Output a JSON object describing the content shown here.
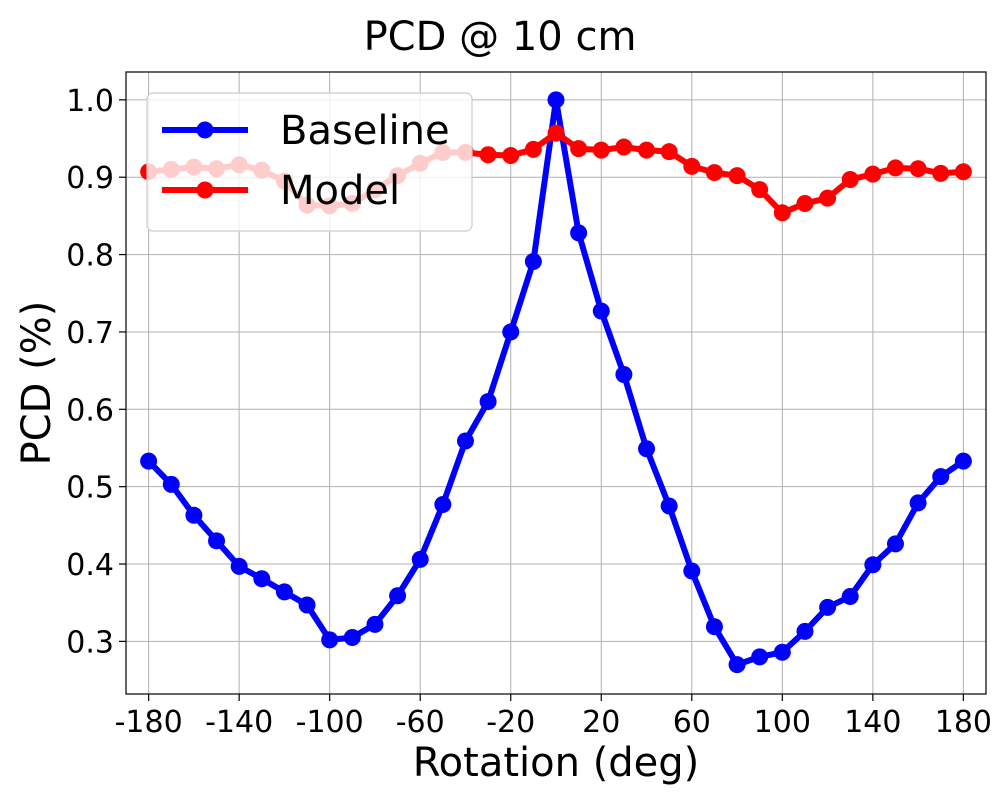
{
  "chart_data": {
    "type": "line",
    "title": "PCD @ 10 cm",
    "xlabel": "Rotation (deg)",
    "ylabel": "PCD (%)",
    "xlim": [
      -190,
      190
    ],
    "ylim": [
      0.232,
      1.036
    ],
    "xticks": [
      -180,
      -140,
      -100,
      -60,
      -20,
      20,
      60,
      100,
      140,
      180
    ],
    "yticks": [
      0.3,
      0.4,
      0.5,
      0.6,
      0.7,
      0.8,
      0.9,
      1.0
    ],
    "ytick_labels": [
      "0.3",
      "0.4",
      "0.5",
      "0.6",
      "0.7",
      "0.8",
      "0.9",
      "1.0"
    ],
    "grid": true,
    "legend": "top-left",
    "x": [
      -180,
      -170,
      -160,
      -150,
      -140,
      -130,
      -120,
      -110,
      -100,
      -90,
      -80,
      -70,
      -60,
      -50,
      -40,
      -30,
      -20,
      -10,
      0,
      10,
      20,
      30,
      40,
      50,
      60,
      70,
      80,
      90,
      100,
      110,
      120,
      130,
      140,
      150,
      160,
      170,
      180
    ],
    "series": [
      {
        "name": "Baseline",
        "color": "#0000ff",
        "values": [
          0.533,
          0.503,
          0.463,
          0.43,
          0.397,
          0.381,
          0.364,
          0.347,
          0.302,
          0.305,
          0.322,
          0.359,
          0.406,
          0.477,
          0.559,
          0.61,
          0.7,
          0.791,
          1.0,
          0.828,
          0.727,
          0.645,
          0.549,
          0.475,
          0.391,
          0.319,
          0.27,
          0.28,
          0.286,
          0.313,
          0.344,
          0.358,
          0.399,
          0.426,
          0.479,
          0.513,
          0.533
        ]
      },
      {
        "name": "Model",
        "color": "#ff0000",
        "values": [
          0.907,
          0.91,
          0.913,
          0.911,
          0.916,
          0.909,
          0.895,
          0.864,
          0.863,
          0.866,
          0.884,
          0.902,
          0.918,
          0.932,
          0.932,
          0.929,
          0.928,
          0.936,
          0.957,
          0.937,
          0.935,
          0.939,
          0.935,
          0.933,
          0.914,
          0.906,
          0.902,
          0.884,
          0.854,
          0.866,
          0.873,
          0.897,
          0.904,
          0.912,
          0.911,
          0.905,
          0.907
        ]
      }
    ]
  }
}
